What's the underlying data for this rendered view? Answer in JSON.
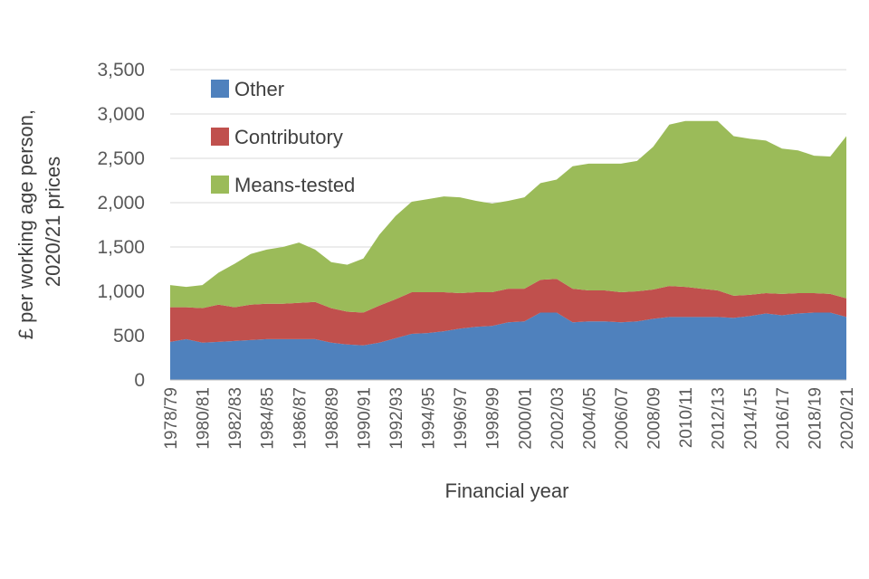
{
  "chart_data": {
    "type": "area",
    "stacked": true,
    "title": "",
    "xlabel": "Financial year",
    "ylabel_lines": [
      "£ per working age person,",
      "2020/21 prices"
    ],
    "ylim": [
      0,
      3500
    ],
    "yticks": [
      0,
      500,
      1000,
      1500,
      2000,
      2500,
      3000,
      3500
    ],
    "ytick_labels": [
      "0",
      "500",
      "1,000",
      "1,500",
      "2,000",
      "2,500",
      "3,000",
      "3,500"
    ],
    "grid": true,
    "legend_position": "top-left",
    "x": [
      "1978/79",
      "1979/80",
      "1980/81",
      "1981/82",
      "1982/83",
      "1983/84",
      "1984/85",
      "1985/86",
      "1986/87",
      "1987/88",
      "1988/89",
      "1989/90",
      "1990/91",
      "1991/92",
      "1992/93",
      "1993/94",
      "1994/95",
      "1995/96",
      "1996/97",
      "1997/98",
      "1998/99",
      "1999/00",
      "2000/01",
      "2001/02",
      "2002/03",
      "2003/04",
      "2004/05",
      "2005/06",
      "2006/07",
      "2007/08",
      "2008/09",
      "2009/10",
      "2010/11",
      "2011/12",
      "2012/13",
      "2013/14",
      "2014/15",
      "2015/16",
      "2016/17",
      "2017/18",
      "2018/19",
      "2019/20",
      "2020/21"
    ],
    "xtick_labels": [
      "1978/79",
      "",
      "1980/81",
      "",
      "1982/83",
      "",
      "1984/85",
      "",
      "1986/87",
      "",
      "1988/89",
      "",
      "1990/91",
      "",
      "1992/93",
      "",
      "1994/95",
      "",
      "1996/97",
      "",
      "1998/99",
      "",
      "2000/01",
      "",
      "2002/03",
      "",
      "2004/05",
      "",
      "2006/07",
      "",
      "2008/09",
      "",
      "2010/11",
      "",
      "2012/13",
      "",
      "2014/15",
      "",
      "2016/17",
      "",
      "2018/19",
      "",
      "2020/21"
    ],
    "series": [
      {
        "name": "Other",
        "color": "#4f81bd",
        "values": [
          430,
          460,
          420,
          430,
          440,
          450,
          460,
          460,
          460,
          460,
          420,
          400,
          390,
          420,
          470,
          520,
          530,
          550,
          580,
          600,
          610,
          650,
          660,
          760,
          760,
          650,
          660,
          660,
          650,
          660,
          690,
          710,
          710,
          710,
          710,
          700,
          720,
          750,
          730,
          750,
          760,
          760,
          710
        ]
      },
      {
        "name": "Contributory",
        "color": "#c0504d",
        "values": [
          390,
          360,
          390,
          420,
          380,
          400,
          400,
          400,
          410,
          420,
          390,
          370,
          370,
          420,
          440,
          470,
          460,
          440,
          400,
          390,
          380,
          380,
          370,
          370,
          380,
          380,
          350,
          350,
          340,
          340,
          330,
          350,
          340,
          320,
          300,
          250,
          240,
          230,
          240,
          230,
          220,
          210,
          210
        ]
      },
      {
        "name": "Means-tested",
        "color": "#9bbb59",
        "values": [
          250,
          230,
          260,
          360,
          490,
          570,
          610,
          640,
          680,
          590,
          520,
          530,
          610,
          800,
          940,
          1020,
          1050,
          1080,
          1080,
          1030,
          1000,
          990,
          1030,
          1090,
          1120,
          1380,
          1430,
          1430,
          1450,
          1470,
          1610,
          1820,
          1870,
          1890,
          1910,
          1800,
          1760,
          1720,
          1640,
          1610,
          1550,
          1550,
          1830
        ]
      }
    ]
  }
}
